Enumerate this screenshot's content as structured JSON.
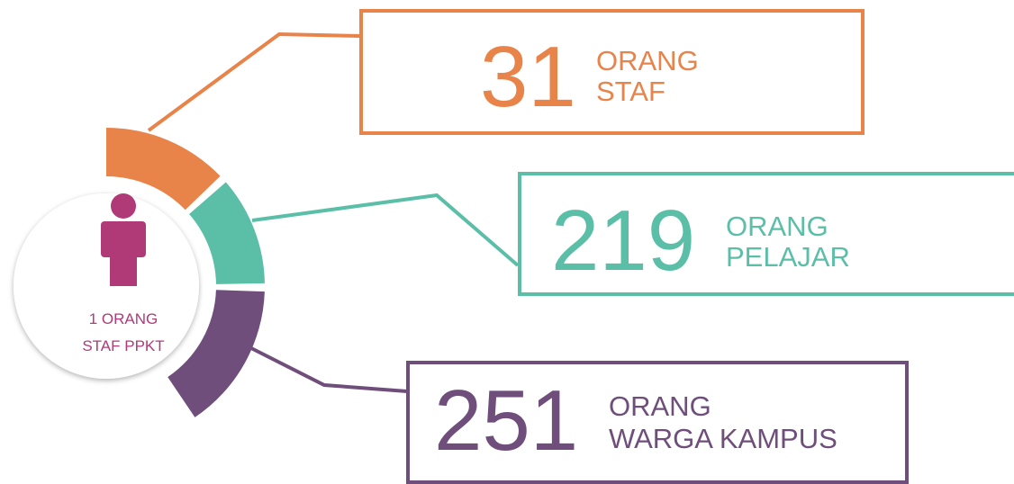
{
  "center": {
    "line1": "1 ORANG",
    "line2": "STAF PPKT"
  },
  "items": [
    {
      "number": "31",
      "line1": "ORANG",
      "line2": "STAF"
    },
    {
      "number": "219",
      "line1": "ORANG",
      "line2": "PELAJAR"
    },
    {
      "number": "251",
      "line1": "ORANG",
      "line2": "WARGA KAMPUS"
    }
  ]
}
